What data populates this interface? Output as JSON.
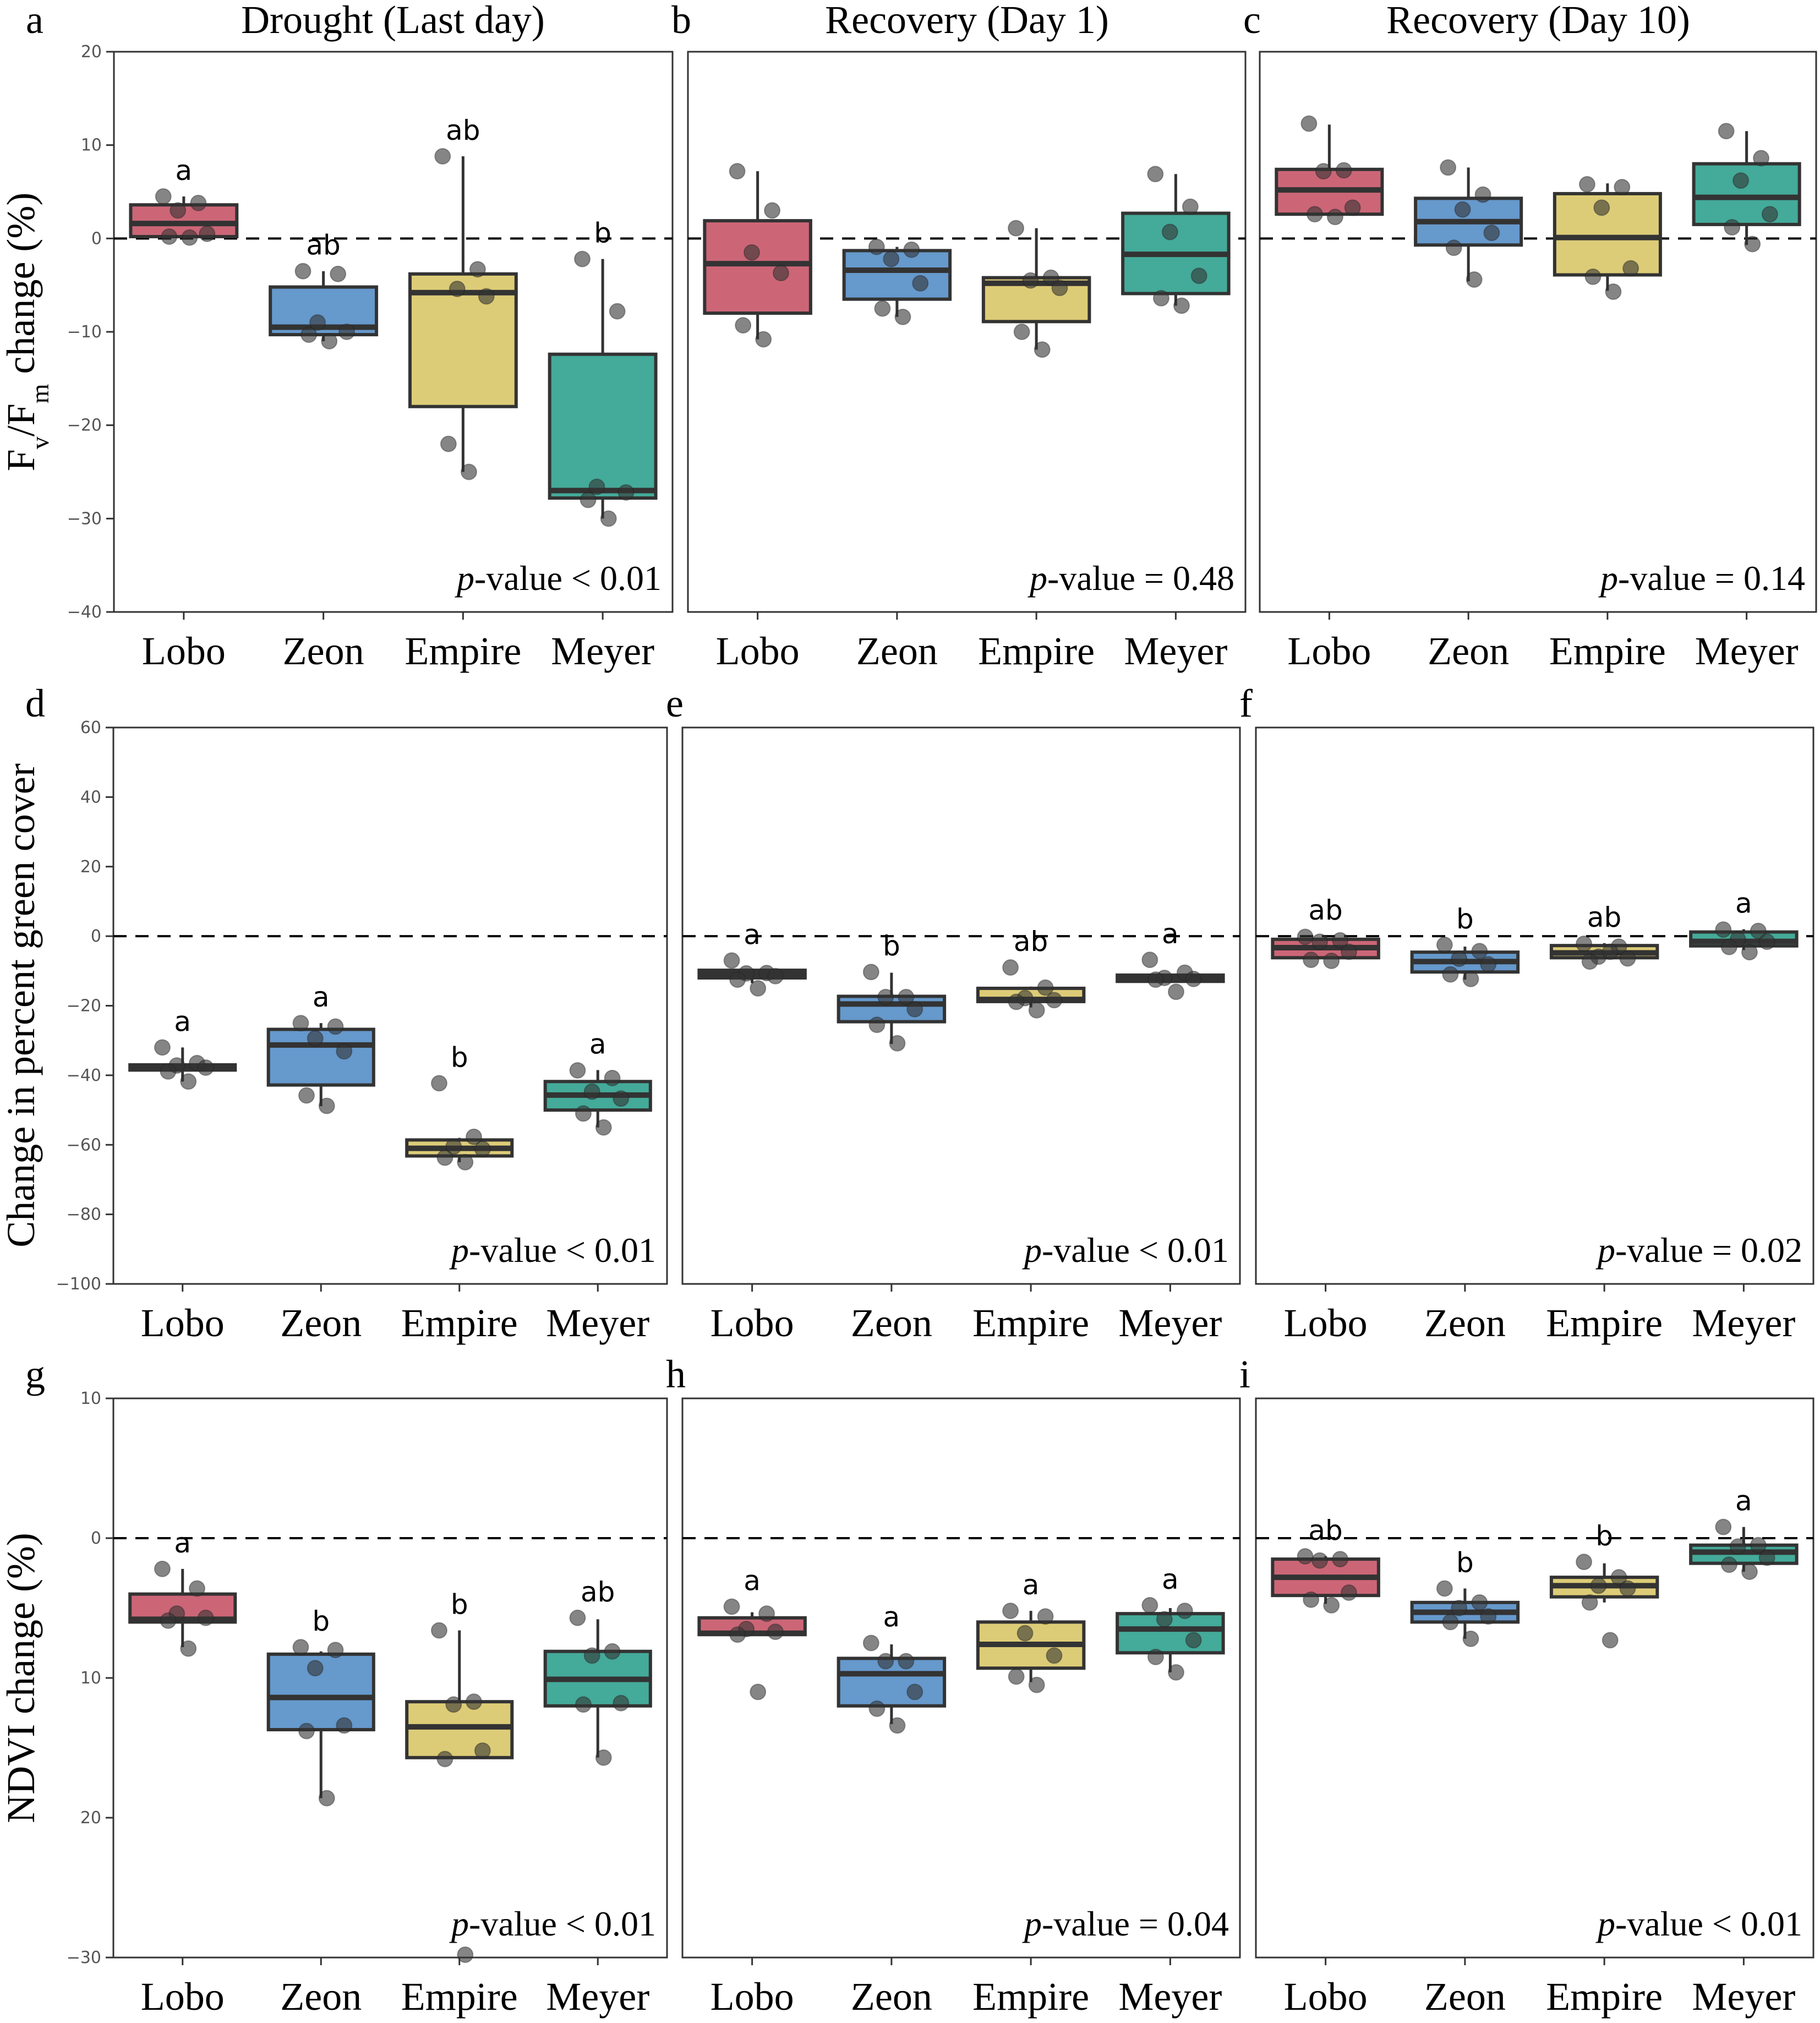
{
  "figure": {
    "cultivars": [
      "Lobo",
      "Zeon",
      "Empire",
      "Meyer"
    ],
    "colors": {
      "Lobo": "#CC6677",
      "Zeon": "#6699CC",
      "Empire": "#DDCC77",
      "Meyer": "#44AA99"
    },
    "column_titles": [
      "Drought (Last day)",
      "Recovery (Day 1)",
      "Recovery (Day 10)"
    ],
    "row_ylabels": [
      "Fv/Fm change (%)",
      "Change in percent green cover",
      "NDVI change (%)"
    ]
  },
  "chart_data": [
    {
      "panel": "a",
      "type": "box",
      "title": "Drought (Last day)",
      "row": 0,
      "col": 0,
      "ylabel": "Fv/Fm change (%)",
      "ylim": [
        -40,
        20
      ],
      "yticks": [
        20,
        10,
        0,
        -10,
        -20,
        -30,
        -40
      ],
      "ytick_labels": [
        "20",
        "10",
        "0",
        "−10",
        "−20",
        "−30",
        "−40"
      ],
      "show_yticks": true,
      "reference_line": 0,
      "pvalue_text": "p-value  < 0.01",
      "pvalue_italic": "p",
      "pvalue_rest": "-value  < 0.01",
      "categories": [
        "Lobo",
        "Zeon",
        "Empire",
        "Meyer"
      ],
      "boxes": [
        {
          "q1": 0.2,
          "median": 1.6,
          "q3": 3.6,
          "lo": 0.0,
          "hi": 4.5,
          "letter": "a",
          "points": [
            4.5,
            3.8,
            3.0,
            0.5,
            0.2,
            0.1
          ]
        },
        {
          "q1": -10.3,
          "median": -9.5,
          "q3": -5.2,
          "lo": -11.0,
          "hi": -3.5,
          "letter": "ab",
          "points": [
            -3.5,
            -3.8,
            -9.0,
            -10.0,
            -10.3,
            -11.0
          ]
        },
        {
          "q1": -18.0,
          "median": -5.8,
          "q3": -3.8,
          "lo": -25.0,
          "hi": 8.8,
          "letter": "ab",
          "points": [
            8.8,
            -3.3,
            -5.4,
            -6.2,
            -22.0,
            -25.0
          ]
        },
        {
          "q1": -27.8,
          "median": -27.0,
          "q3": -12.4,
          "lo": -30.0,
          "hi": -2.2,
          "letter": "b",
          "points": [
            -2.2,
            -7.8,
            -26.6,
            -27.2,
            -28.0,
            -30.0
          ]
        }
      ]
    },
    {
      "panel": "b",
      "type": "box",
      "title": "Recovery (Day 1)",
      "row": 0,
      "col": 1,
      "ylim": [
        -40,
        20
      ],
      "show_yticks": false,
      "reference_line": 0,
      "pvalue_text": "p-value = 0.48",
      "pvalue_italic": "p",
      "pvalue_rest": "-value = 0.48",
      "categories": [
        "Lobo",
        "Zeon",
        "Empire",
        "Meyer"
      ],
      "boxes": [
        {
          "q1": -8.0,
          "median": -2.7,
          "q3": 1.9,
          "lo": -10.8,
          "hi": 7.2,
          "letter": "",
          "points": [
            7.2,
            3.0,
            -1.5,
            -3.7,
            -9.3,
            -10.8
          ]
        },
        {
          "q1": -6.5,
          "median": -3.4,
          "q3": -1.3,
          "lo": -8.4,
          "hi": -0.9,
          "letter": "",
          "points": [
            -0.9,
            -1.2,
            -2.2,
            -4.8,
            -7.5,
            -8.4
          ]
        },
        {
          "q1": -8.9,
          "median": -4.8,
          "q3": -4.2,
          "lo": -11.9,
          "hi": 1.1,
          "letter": "",
          "points": [
            1.1,
            -4.2,
            -4.5,
            -5.3,
            -10.0,
            -11.9
          ]
        },
        {
          "q1": -5.9,
          "median": -1.7,
          "q3": 2.7,
          "lo": -7.2,
          "hi": 6.9,
          "letter": "",
          "points": [
            6.9,
            3.4,
            0.7,
            -4.0,
            -6.4,
            -7.2
          ]
        }
      ]
    },
    {
      "panel": "c",
      "type": "box",
      "title": "Recovery (Day 10)",
      "row": 0,
      "col": 2,
      "ylim": [
        -40,
        20
      ],
      "show_yticks": false,
      "reference_line": 0,
      "pvalue_text": "p-value = 0.14",
      "pvalue_italic": "p",
      "pvalue_rest": "-value = 0.14",
      "categories": [
        "Lobo",
        "Zeon",
        "Empire",
        "Meyer"
      ],
      "boxes": [
        {
          "q1": 2.6,
          "median": 5.2,
          "q3": 7.4,
          "lo": 2.4,
          "hi": 12.2,
          "letter": "",
          "points": [
            12.3,
            7.3,
            7.2,
            3.3,
            2.6,
            2.3
          ]
        },
        {
          "q1": -0.7,
          "median": 1.8,
          "q3": 4.3,
          "lo": -4.6,
          "hi": 7.6,
          "letter": "",
          "points": [
            7.6,
            4.7,
            3.1,
            0.6,
            -1.0,
            -4.4
          ]
        },
        {
          "q1": -3.9,
          "median": 0.1,
          "q3": 4.8,
          "lo": -5.6,
          "hi": 5.9,
          "letter": "",
          "points": [
            5.8,
            5.5,
            3.3,
            -3.2,
            -4.1,
            -5.7
          ]
        },
        {
          "q1": 1.5,
          "median": 4.4,
          "q3": 8.0,
          "lo": -0.7,
          "hi": 11.5,
          "letter": "",
          "points": [
            11.5,
            8.6,
            6.2,
            2.6,
            1.2,
            -0.6
          ]
        }
      ]
    },
    {
      "panel": "d",
      "type": "box",
      "title": "",
      "row": 1,
      "col": 0,
      "ylabel": "Change in percent green cover",
      "ylim": [
        -100,
        60
      ],
      "yticks": [
        60,
        40,
        20,
        0,
        -20,
        -40,
        -60,
        -80,
        -100
      ],
      "ytick_labels": [
        "60",
        "40",
        "20",
        "0",
        "−20",
        "−40",
        "−60",
        "−80",
        "−100"
      ],
      "show_yticks": true,
      "reference_line": 0,
      "pvalue_text": "p-value < 0.01",
      "pvalue_italic": "p",
      "pvalue_rest": "-value < 0.01",
      "categories": [
        "Lobo",
        "Zeon",
        "Empire",
        "Meyer"
      ],
      "boxes": [
        {
          "q1": -38.5,
          "median": -37.8,
          "q3": -37.0,
          "lo": -41.8,
          "hi": -32.0,
          "letter": "a",
          "points": [
            -32.0,
            -36.5,
            -37.2,
            -37.8,
            -38.9,
            -41.8
          ]
        },
        {
          "q1": -42.8,
          "median": -31.3,
          "q3": -26.8,
          "lo": -48.9,
          "hi": -25.0,
          "letter": "a",
          "points": [
            -25.0,
            -26.0,
            -29.4,
            -33.1,
            -45.8,
            -48.8
          ]
        },
        {
          "q1": -63.2,
          "median": -61.0,
          "q3": -58.6,
          "lo": -65.0,
          "hi": -58.0,
          "letter": "b",
          "points": [
            -42.3,
            -57.7,
            -60.5,
            -61.2,
            -63.7,
            -65.0
          ]
        },
        {
          "q1": -50.0,
          "median": -45.7,
          "q3": -41.8,
          "lo": -55.0,
          "hi": -38.5,
          "letter": "a",
          "points": [
            -38.6,
            -40.8,
            -44.7,
            -46.7,
            -51.0,
            -55.0
          ]
        }
      ]
    },
    {
      "panel": "e",
      "type": "box",
      "title": "",
      "row": 1,
      "col": 1,
      "ylim": [
        -100,
        60
      ],
      "show_yticks": false,
      "reference_line": 0,
      "pvalue_text": "p-value < 0.01",
      "pvalue_italic": "p",
      "pvalue_rest": "-value < 0.01",
      "categories": [
        "Lobo",
        "Zeon",
        "Empire",
        "Meyer"
      ],
      "boxes": [
        {
          "q1": -12.0,
          "median": -11.0,
          "q3": -9.8,
          "lo": -13.5,
          "hi": -9.8,
          "letter": "a",
          "points": [
            -7.0,
            -10.6,
            -10.7,
            -11.5,
            -12.5,
            -15.0
          ]
        },
        {
          "q1": -24.6,
          "median": -19.5,
          "q3": -17.3,
          "lo": -31.0,
          "hi": -10.5,
          "letter": "b",
          "points": [
            -10.3,
            -17.5,
            -17.5,
            -21.0,
            -25.5,
            -30.8
          ]
        },
        {
          "q1": -18.8,
          "median": -18.2,
          "q3": -15.0,
          "lo": -20.5,
          "hi": -14.5,
          "letter": "ab",
          "points": [
            -9.0,
            -14.8,
            -17.8,
            -18.4,
            -18.9,
            -21.3
          ]
        },
        {
          "q1": -13.0,
          "median": -12.0,
          "q3": -11.2,
          "lo": -13.0,
          "hi": -11.2,
          "letter": "a",
          "points": [
            -6.8,
            -10.5,
            -12.0,
            -12.3,
            -12.5,
            -16.0
          ]
        }
      ]
    },
    {
      "panel": "f",
      "type": "box",
      "title": "",
      "row": 1,
      "col": 2,
      "ylim": [
        -100,
        60
      ],
      "show_yticks": false,
      "reference_line": 0,
      "pvalue_text": "p-value = 0.02",
      "pvalue_italic": "p",
      "pvalue_rest": "-value = 0.02",
      "categories": [
        "Lobo",
        "Zeon",
        "Empire",
        "Meyer"
      ],
      "boxes": [
        {
          "q1": -6.2,
          "median": -3.3,
          "q3": -0.9,
          "lo": -6.2,
          "hi": 0.0,
          "letter": "ab",
          "points": [
            -0.2,
            -1.2,
            -1.6,
            -4.5,
            -6.8,
            -7.1
          ]
        },
        {
          "q1": -10.3,
          "median": -7.3,
          "q3": -4.6,
          "lo": -12.5,
          "hi": -3.0,
          "letter": "b",
          "points": [
            -2.5,
            -4.3,
            -6.5,
            -8.1,
            -11.0,
            -12.3
          ]
        },
        {
          "q1": -6.2,
          "median": -4.8,
          "q3": -2.7,
          "lo": -6.5,
          "hi": -2.0,
          "letter": "ab",
          "points": [
            -2.2,
            -3.0,
            -5.9,
            -6.4,
            -7.3,
            -4.5
          ]
        },
        {
          "q1": -2.8,
          "median": -1.5,
          "q3": 1.2,
          "lo": -4.0,
          "hi": 2.0,
          "letter": "a",
          "points": [
            1.9,
            1.5,
            -0.9,
            -1.6,
            -3.1,
            -4.6
          ]
        }
      ]
    },
    {
      "panel": "g",
      "type": "box",
      "title": "",
      "row": 2,
      "col": 0,
      "ylabel": "NDVI change (%)",
      "ylim": [
        -10,
        30
      ],
      "y_inverted": true,
      "yticks": [
        -10,
        0,
        10,
        20,
        30
      ],
      "ytick_labels": [
        "10",
        "0",
        "10",
        "20",
        "−30"
      ],
      "show_yticks": true,
      "reference_line": 0,
      "pvalue_text": "p-value < 0.01",
      "pvalue_italic": "p",
      "pvalue_rest": "-value < 0.01",
      "categories": [
        "Lobo",
        "Zeon",
        "Empire",
        "Meyer"
      ],
      "boxes": [
        {
          "q1": 4.0,
          "median": 5.8,
          "q3": 6.0,
          "lo": 2.2,
          "hi": 7.8,
          "letter": "a",
          "points": [
            2.2,
            3.6,
            5.4,
            5.7,
            5.9,
            7.9
          ]
        },
        {
          "q1": 8.3,
          "median": 11.4,
          "q3": 13.7,
          "lo": 8.1,
          "hi": 18.6,
          "letter": "b",
          "points": [
            7.8,
            8.0,
            9.3,
            13.4,
            13.8,
            18.6
          ]
        },
        {
          "q1": 11.7,
          "median": 13.5,
          "q3": 15.7,
          "lo": 6.6,
          "hi": 15.7,
          "letter": "b",
          "points": [
            6.6,
            11.7,
            11.9,
            15.2,
            15.8,
            29.8
          ]
        },
        {
          "q1": 8.1,
          "median": 10.1,
          "q3": 12.0,
          "lo": 5.8,
          "hi": 15.7,
          "letter": "ab",
          "points": [
            5.7,
            8.1,
            8.4,
            11.8,
            11.9,
            15.7
          ]
        }
      ]
    },
    {
      "panel": "h",
      "type": "box",
      "title": "",
      "row": 2,
      "col": 1,
      "ylim": [
        -10,
        30
      ],
      "y_inverted": true,
      "show_yticks": false,
      "reference_line": 0,
      "pvalue_text": "p-value = 0.04",
      "pvalue_italic": "p",
      "pvalue_rest": "-value = 0.04",
      "categories": [
        "Lobo",
        "Zeon",
        "Empire",
        "Meyer"
      ],
      "boxes": [
        {
          "q1": 5.7,
          "median": 6.8,
          "q3": 6.9,
          "lo": 5.3,
          "hi": 6.9,
          "letter": "a",
          "points": [
            4.9,
            5.4,
            6.5,
            6.7,
            6.9,
            11.0
          ]
        },
        {
          "q1": 8.6,
          "median": 9.7,
          "q3": 12.0,
          "lo": 7.6,
          "hi": 13.3,
          "letter": "a",
          "points": [
            7.5,
            8.8,
            8.8,
            11.0,
            12.2,
            13.4
          ]
        },
        {
          "q1": 6.0,
          "median": 7.6,
          "q3": 9.3,
          "lo": 5.2,
          "hi": 10.3,
          "letter": "a",
          "points": [
            5.2,
            5.6,
            6.8,
            8.4,
            9.9,
            10.5
          ]
        },
        {
          "q1": 5.4,
          "median": 6.5,
          "q3": 8.2,
          "lo": 5.0,
          "hi": 9.6,
          "letter": "a",
          "points": [
            4.8,
            5.2,
            5.8,
            7.3,
            8.5,
            9.6
          ]
        }
      ]
    },
    {
      "panel": "i",
      "type": "box",
      "title": "",
      "row": 2,
      "col": 2,
      "ylim": [
        -10,
        30
      ],
      "y_inverted": true,
      "show_yticks": false,
      "reference_line": 0,
      "pvalue_text": "p-value < 0.01",
      "pvalue_italic": "p",
      "pvalue_rest": "-value < 0.01",
      "categories": [
        "Lobo",
        "Zeon",
        "Empire",
        "Meyer"
      ],
      "boxes": [
        {
          "q1": 1.5,
          "median": 2.8,
          "q3": 4.1,
          "lo": 1.3,
          "hi": 4.7,
          "letter": "ab",
          "points": [
            1.3,
            1.5,
            1.6,
            3.9,
            4.4,
            4.8
          ]
        },
        {
          "q1": 4.6,
          "median": 5.3,
          "q3": 6.0,
          "lo": 3.6,
          "hi": 7.2,
          "letter": "b",
          "points": [
            3.6,
            4.6,
            5.0,
            5.6,
            6.0,
            7.2
          ]
        },
        {
          "q1": 2.8,
          "median": 3.4,
          "q3": 4.2,
          "lo": 1.8,
          "hi": 4.6,
          "letter": "b",
          "points": [
            1.7,
            2.8,
            3.4,
            3.6,
            4.6,
            7.3
          ]
        },
        {
          "q1": 0.5,
          "median": 1.0,
          "q3": 1.8,
          "lo": -0.8,
          "hi": 2.4,
          "letter": "a",
          "points": [
            -0.8,
            0.5,
            0.6,
            1.4,
            1.9,
            2.4
          ]
        }
      ]
    }
  ]
}
